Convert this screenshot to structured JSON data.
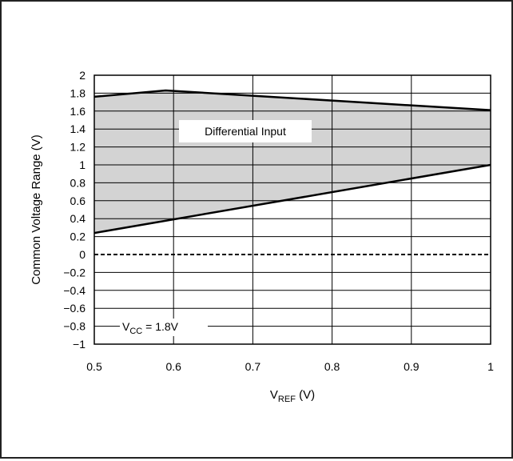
{
  "chart_data": {
    "type": "area",
    "title": "",
    "xlabel": {
      "main": "V",
      "sub": "REF",
      "unit": " (V)"
    },
    "ylabel": "Common Voltage Range (V)",
    "xlim": [
      0.5,
      1.0
    ],
    "ylim": [
      -1,
      2
    ],
    "x_ticks": [
      "0.5",
      "0.6",
      "0.7",
      "0.8",
      "0.9",
      "1"
    ],
    "y_ticks": [
      "2",
      "1.8",
      "1.6",
      "1.4",
      "1.2",
      "1",
      "0.8",
      "0.6",
      "0.4",
      "0.2",
      "0",
      "−0.2",
      "−0.4",
      "−0.6",
      "−0.8",
      "−1"
    ],
    "grid": true,
    "series": [
      {
        "name": "",
        "role": "upper-bound",
        "x": [
          0.5,
          0.59,
          1.0
        ],
        "y": [
          1.76,
          1.83,
          1.61
        ]
      },
      {
        "name": "",
        "role": "lower-bound",
        "x": [
          0.5,
          1.0
        ],
        "y": [
          0.24,
          1.0
        ]
      }
    ],
    "reference_line": {
      "y": 0,
      "style": "dashed"
    },
    "fill_color": "#d3d3d3",
    "region_label": "Differential Input",
    "condition_label": {
      "main": "V",
      "sub": "CC",
      "rest": " = 1.8V"
    }
  }
}
